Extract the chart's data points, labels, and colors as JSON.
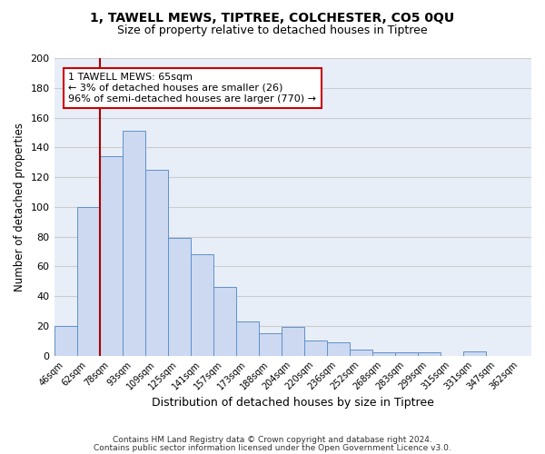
{
  "title": "1, TAWELL MEWS, TIPTREE, COLCHESTER, CO5 0QU",
  "subtitle": "Size of property relative to detached houses in Tiptree",
  "xlabel": "Distribution of detached houses by size in Tiptree",
  "ylabel": "Number of detached properties",
  "bin_labels": [
    "46sqm",
    "62sqm",
    "78sqm",
    "93sqm",
    "109sqm",
    "125sqm",
    "141sqm",
    "157sqm",
    "173sqm",
    "188sqm",
    "204sqm",
    "220sqm",
    "236sqm",
    "252sqm",
    "268sqm",
    "283sqm",
    "299sqm",
    "315sqm",
    "331sqm",
    "347sqm",
    "362sqm"
  ],
  "bar_heights": [
    20,
    100,
    134,
    151,
    125,
    79,
    68,
    46,
    23,
    15,
    19,
    10,
    9,
    4,
    2,
    2,
    2,
    0,
    3,
    0,
    0
  ],
  "bar_color": "#ccd9f0",
  "bar_edge_color": "#6090cc",
  "vline_x": 1.5,
  "vline_color": "#aa0000",
  "annotation_text": "1 TAWELL MEWS: 65sqm\n← 3% of detached houses are smaller (26)\n96% of semi-detached houses are larger (770) →",
  "annotation_box_color": "#ffffff",
  "annotation_box_edge_color": "#cc0000",
  "ylim": [
    0,
    200
  ],
  "yticks": [
    0,
    20,
    40,
    60,
    80,
    100,
    120,
    140,
    160,
    180,
    200
  ],
  "grid_color": "#cccccc",
  "background_color": "#e8eef8",
  "footer_line1": "Contains HM Land Registry data © Crown copyright and database right 2024.",
  "footer_line2": "Contains public sector information licensed under the Open Government Licence v3.0."
}
